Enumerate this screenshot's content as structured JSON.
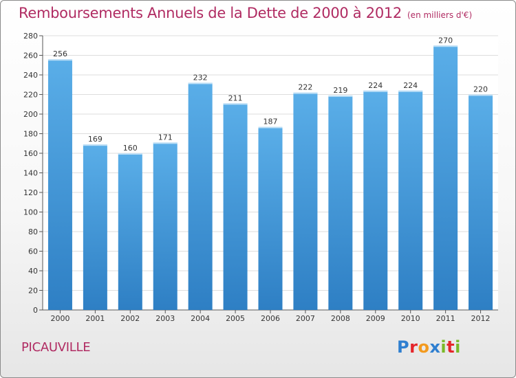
{
  "header": {
    "title": "Remboursements Annuels de la Dette de 2000 à 2012",
    "subtitle": "(en milliers d'€)"
  },
  "commune": "PICAUVILLE",
  "logo": {
    "text": "Proxiti",
    "letters": [
      {
        "ch": "P",
        "color": "#2f7fd0"
      },
      {
        "ch": "r",
        "color": "#e5262b"
      },
      {
        "ch": "o",
        "color": "#f39a1e"
      },
      {
        "ch": "x",
        "color": "#2f7fd0"
      },
      {
        "ch": "i",
        "color": "#7ab929"
      },
      {
        "ch": "t",
        "color": "#e5262b"
      },
      {
        "ch": "i",
        "color": "#7ab929"
      }
    ]
  },
  "colors": {
    "title": "#b02b62",
    "bar_top": "#5aaee8",
    "bar_bottom": "#2e7fc4",
    "grid": "#dddddd"
  },
  "chart_data": {
    "type": "bar",
    "title": "Remboursements Annuels de la Dette de 2000 à 2012",
    "subtitle": "(en milliers d'€)",
    "categories": [
      "2000",
      "2001",
      "2002",
      "2003",
      "2004",
      "2005",
      "2006",
      "2007",
      "2008",
      "2009",
      "2010",
      "2011",
      "2012"
    ],
    "values": [
      256,
      169,
      160,
      171,
      232,
      211,
      187,
      222,
      219,
      224,
      224,
      270,
      220
    ],
    "ylim": [
      0,
      280
    ],
    "yticks": [
      0,
      20,
      40,
      60,
      80,
      100,
      120,
      140,
      160,
      180,
      200,
      220,
      240,
      260,
      280
    ],
    "grid": true,
    "data_labels": true
  }
}
